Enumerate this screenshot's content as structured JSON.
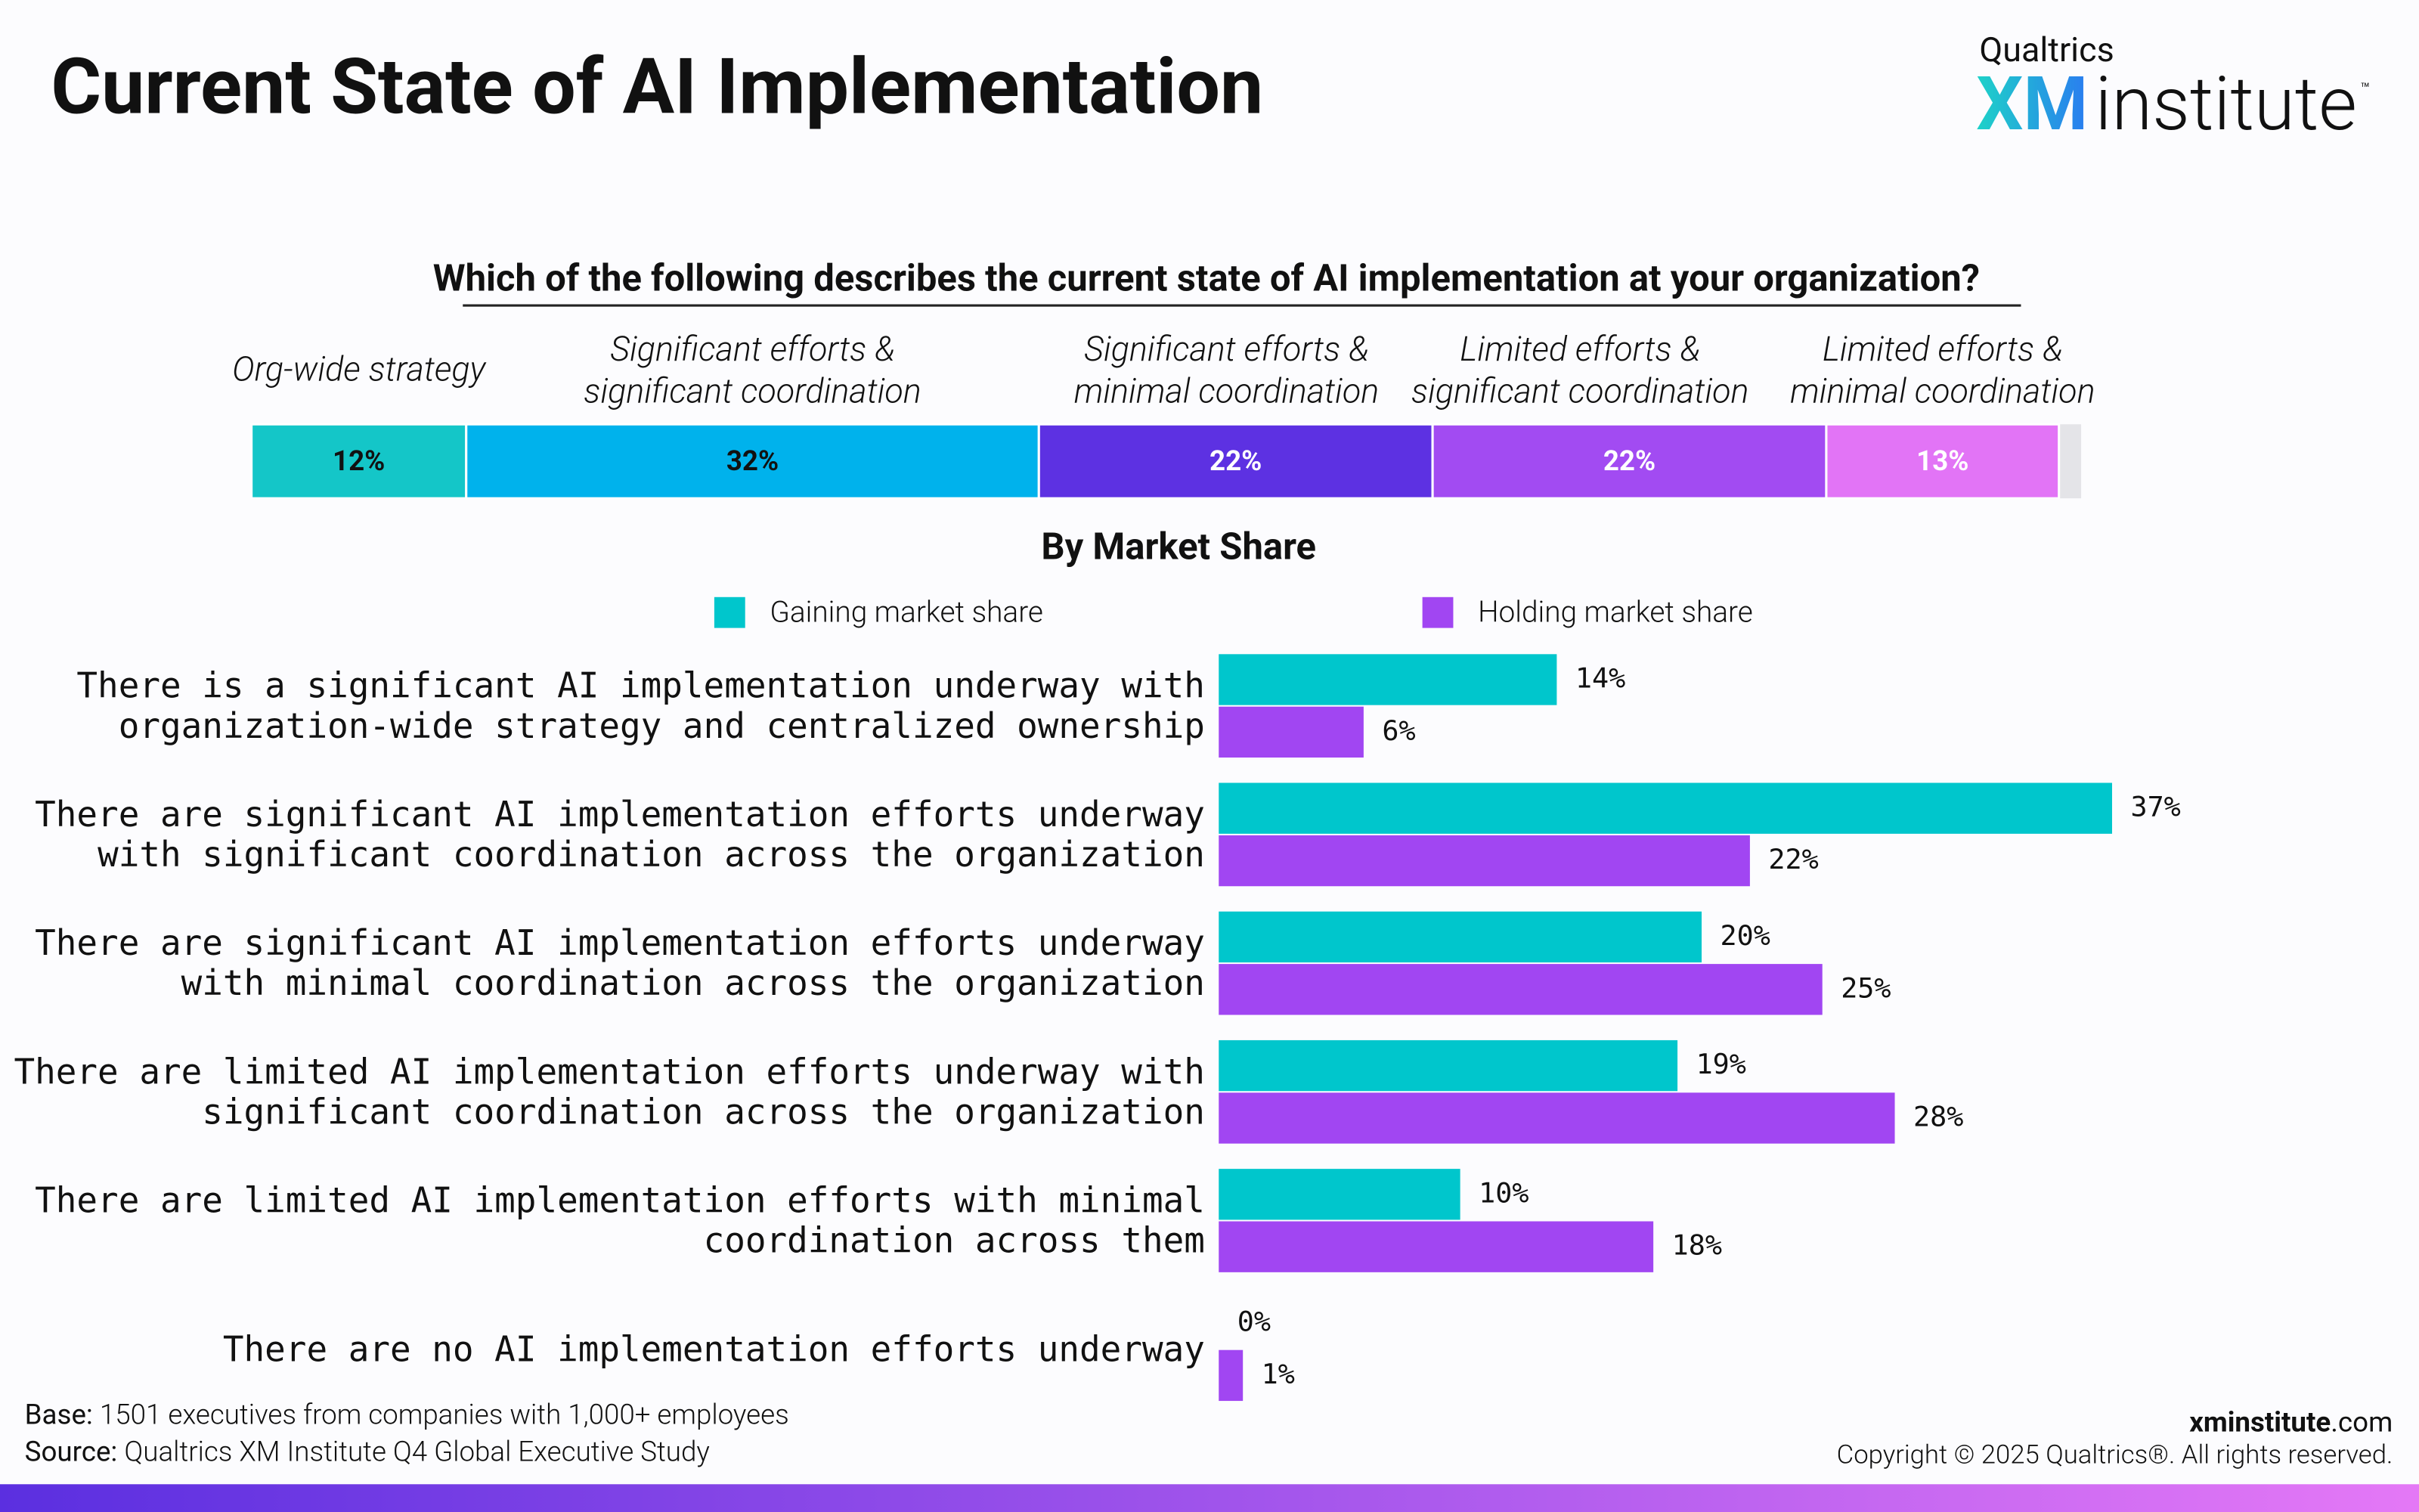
{
  "header": {
    "title": "Current State of AI Implementation",
    "logo_top": "Qualtrics",
    "logo_xm": "XM",
    "logo_institute": "institute",
    "logo_tm": "™"
  },
  "chart_data": [
    {
      "type": "stacked-bar",
      "title": "Which of the following describes the current state of AI implementation at your organization?",
      "categories": [
        [
          "Org-wide strategy"
        ],
        [
          "Significant efforts &",
          "significant coordination"
        ],
        [
          "Significant efforts &",
          "minimal coordination"
        ],
        [
          "Limited efforts &",
          "significant coordination"
        ],
        [
          "Limited efforts &",
          "minimal coordination"
        ]
      ],
      "values": [
        12,
        32,
        22,
        22,
        13
      ],
      "value_labels": [
        "12%",
        "32%",
        "22%",
        "22%",
        "13%"
      ],
      "colors": [
        "#14c6c8",
        "#00b2ec",
        "#5d31e2",
        "#a24bf2",
        "#e274f6"
      ],
      "label_colors": [
        "#111111",
        "#111111",
        "#ffffff",
        "#ffffff",
        "#ffffff"
      ]
    },
    {
      "type": "grouped-bar",
      "title": "By Market Share",
      "categories": [
        [
          "There is a significant AI implementation underway with",
          "organization-wide strategy and centralized ownership"
        ],
        [
          "There are significant AI implementation efforts underway",
          "with significant coordination across the organization"
        ],
        [
          "There are significant AI implementation efforts underway",
          "with minimal coordination across the organization"
        ],
        [
          "There are limited AI implementation efforts underway with",
          "significant coordination across the organization"
        ],
        [
          "There are limited AI implementation efforts with minimal",
          "coordination across them"
        ],
        [
          "There are no AI implementation efforts underway"
        ]
      ],
      "series": [
        {
          "name": "Gaining market share",
          "color": "#00c6cc",
          "values": [
            14,
            37,
            20,
            19,
            10,
            0
          ],
          "value_labels": [
            "14%",
            "37%",
            "20%",
            "19%",
            "10%",
            "0%"
          ]
        },
        {
          "name": "Holding market share",
          "color": "#a146f2",
          "values": [
            6,
            22,
            25,
            28,
            18,
            1
          ],
          "value_labels": [
            "6%",
            "22%",
            "25%",
            "28%",
            "18%",
            "1%"
          ]
        }
      ]
    }
  ],
  "footer": {
    "base_label": "Base:",
    "base": "1501 executives from companies with 1,000+ employees",
    "source_label": "Source:",
    "source": "Qualtrics XM Institute Q4 Global Executive Study",
    "site_bold": "xminstitute",
    "site_rest": ".com",
    "copyright": "Copyright © 2025 Qualtrics®. All rights reserved."
  }
}
